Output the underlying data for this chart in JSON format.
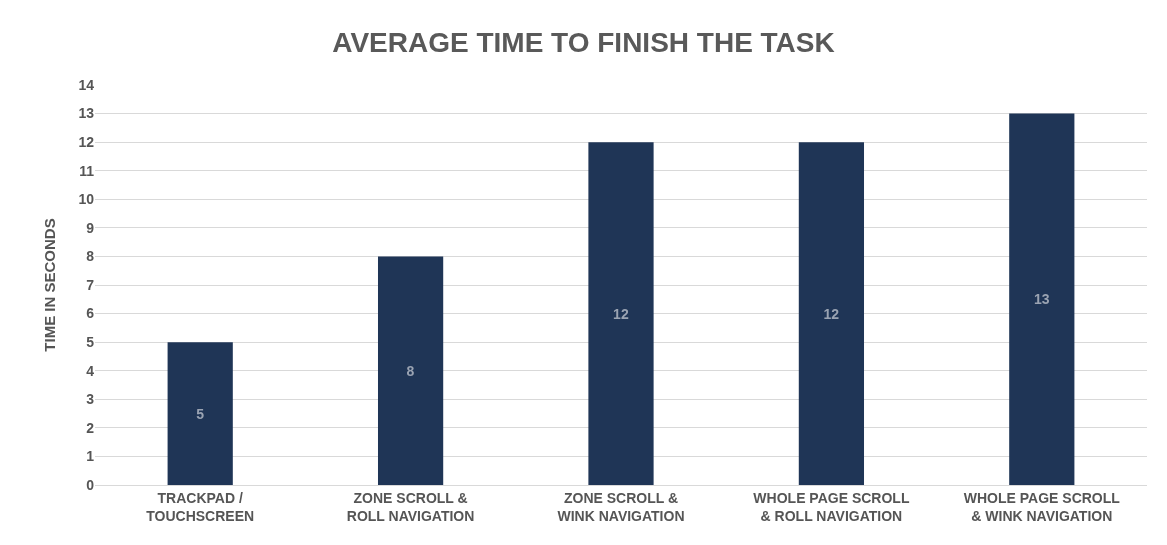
{
  "chart_data": {
    "type": "bar",
    "title": "AVERAGE TIME TO FINISH THE TASK",
    "ylabel": "TIME IN SECONDS",
    "categories": [
      "TRACKPAD /\nTOUCHSCREEN",
      "ZONE SCROLL &\nROLL NAVIGATION",
      "ZONE SCROLL &\nWINK NAVIGATION",
      "WHOLE PAGE SCROLL\n& ROLL NAVIGATION",
      "WHOLE PAGE SCROLL\n& WINK NAVIGATION"
    ],
    "values": [
      5,
      8,
      12,
      12,
      13
    ],
    "color": "#1f3556",
    "ylim": [
      0,
      14
    ],
    "yticks": [
      0,
      1,
      2,
      3,
      4,
      5,
      6,
      7,
      8,
      9,
      10,
      11,
      12,
      13,
      14
    ],
    "grid": "y",
    "data_labels": true
  }
}
